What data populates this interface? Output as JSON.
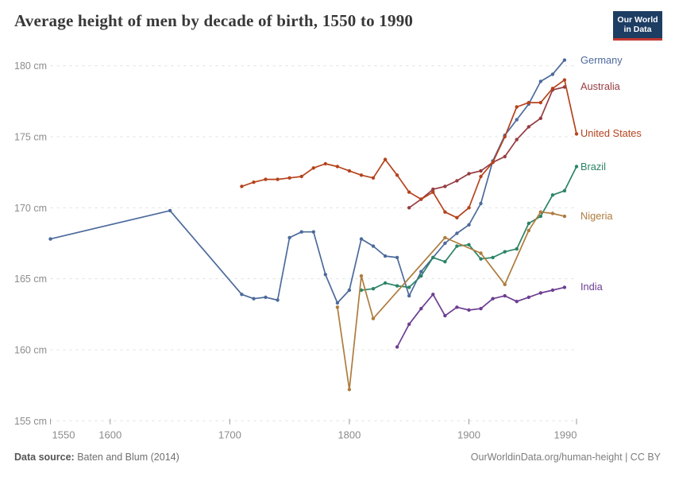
{
  "title": "Average height of men by decade of birth, 1550 to 1990",
  "logo": {
    "line1": "Our World",
    "line2": "in Data"
  },
  "footer": {
    "source_label": "Data source:",
    "source_value": "Baten and Blum (2014)",
    "credit": "OurWorldinData.org/human-height | CC BY"
  },
  "colors": {
    "logo_bg": "#1d3d63",
    "logo_bar": "#c23730",
    "grid": "#e0e0e0",
    "axis_text": "#8c8c8c",
    "tick_mark": "#999999",
    "title_text": "#383838"
  },
  "chart_data": {
    "type": "line",
    "title": "Average height of men by decade of birth, 1550 to 1990",
    "xlabel": "",
    "ylabel": "",
    "grid": true,
    "legend_position": "right-of-line-ends",
    "x_axis": {
      "range": [
        1550,
        1990
      ],
      "ticks": [
        1550,
        1600,
        1700,
        1800,
        1900,
        1990
      ]
    },
    "y_axis": {
      "range": [
        155,
        180
      ],
      "ticks": [
        155,
        160,
        165,
        170,
        175,
        180
      ],
      "tick_suffix": " cm"
    },
    "unit": "cm",
    "series": [
      {
        "name": "Germany",
        "color": "#4C6A9C",
        "points": [
          [
            1550,
            167.8
          ],
          [
            1650,
            169.8
          ],
          [
            1710,
            163.9
          ],
          [
            1720,
            163.6
          ],
          [
            1730,
            163.7
          ],
          [
            1740,
            163.5
          ],
          [
            1750,
            167.9
          ],
          [
            1760,
            168.3
          ],
          [
            1770,
            168.3
          ],
          [
            1780,
            165.3
          ],
          [
            1790,
            163.3
          ],
          [
            1800,
            164.2
          ],
          [
            1810,
            167.8
          ],
          [
            1820,
            167.3
          ],
          [
            1830,
            166.6
          ],
          [
            1840,
            166.5
          ],
          [
            1850,
            163.8
          ],
          [
            1860,
            165.5
          ],
          [
            1870,
            166.5
          ],
          [
            1880,
            167.5
          ],
          [
            1890,
            168.2
          ],
          [
            1900,
            168.8
          ],
          [
            1910,
            170.3
          ],
          [
            1920,
            173.3
          ],
          [
            1930,
            175.1
          ],
          [
            1940,
            176.2
          ],
          [
            1950,
            177.3
          ],
          [
            1960,
            178.9
          ],
          [
            1970,
            179.4
          ],
          [
            1980,
            180.4
          ]
        ]
      },
      {
        "name": "Australia",
        "color": "#963C41",
        "points": [
          [
            1850,
            170.0
          ],
          [
            1860,
            170.6
          ],
          [
            1870,
            171.3
          ],
          [
            1880,
            171.5
          ],
          [
            1890,
            171.9
          ],
          [
            1900,
            172.4
          ],
          [
            1910,
            172.6
          ],
          [
            1920,
            173.2
          ],
          [
            1930,
            173.6
          ],
          [
            1940,
            174.8
          ],
          [
            1950,
            175.7
          ],
          [
            1960,
            176.3
          ],
          [
            1970,
            178.3
          ],
          [
            1980,
            178.5
          ]
        ]
      },
      {
        "name": "United States",
        "color": "#B5431D",
        "points": [
          [
            1710,
            171.5
          ],
          [
            1720,
            171.8
          ],
          [
            1730,
            172.0
          ],
          [
            1740,
            172.0
          ],
          [
            1750,
            172.1
          ],
          [
            1760,
            172.2
          ],
          [
            1770,
            172.8
          ],
          [
            1780,
            173.1
          ],
          [
            1790,
            172.9
          ],
          [
            1800,
            172.6
          ],
          [
            1810,
            172.3
          ],
          [
            1820,
            172.1
          ],
          [
            1830,
            173.4
          ],
          [
            1840,
            172.3
          ],
          [
            1850,
            171.1
          ],
          [
            1860,
            170.6
          ],
          [
            1870,
            171.1
          ],
          [
            1880,
            169.7
          ],
          [
            1890,
            169.3
          ],
          [
            1900,
            170.0
          ],
          [
            1910,
            172.2
          ],
          [
            1920,
            173.2
          ],
          [
            1930,
            175.0
          ],
          [
            1940,
            177.1
          ],
          [
            1950,
            177.4
          ],
          [
            1960,
            177.4
          ],
          [
            1970,
            178.4
          ],
          [
            1980,
            179.0
          ],
          [
            1990,
            175.2
          ]
        ]
      },
      {
        "name": "Brazil",
        "color": "#2C8465",
        "points": [
          [
            1810,
            164.2
          ],
          [
            1820,
            164.3
          ],
          [
            1830,
            164.7
          ],
          [
            1840,
            164.5
          ],
          [
            1850,
            164.4
          ],
          [
            1860,
            165.2
          ],
          [
            1870,
            166.5
          ],
          [
            1880,
            166.2
          ],
          [
            1890,
            167.3
          ],
          [
            1900,
            167.4
          ],
          [
            1910,
            166.4
          ],
          [
            1920,
            166.5
          ],
          [
            1930,
            166.9
          ],
          [
            1940,
            167.1
          ],
          [
            1950,
            168.9
          ],
          [
            1960,
            169.4
          ],
          [
            1970,
            170.9
          ],
          [
            1980,
            171.2
          ],
          [
            1990,
            172.9
          ]
        ]
      },
      {
        "name": "Nigeria",
        "color": "#AE7C3C",
        "points": [
          [
            1790,
            163.0
          ],
          [
            1800,
            157.2
          ],
          [
            1810,
            165.2
          ],
          [
            1820,
            162.2
          ],
          [
            1880,
            167.9
          ],
          [
            1910,
            166.8
          ],
          [
            1930,
            164.6
          ],
          [
            1950,
            168.4
          ],
          [
            1960,
            169.7
          ],
          [
            1970,
            169.6
          ],
          [
            1980,
            169.4
          ]
        ]
      },
      {
        "name": "India",
        "color": "#6D3E91",
        "points": [
          [
            1840,
            160.2
          ],
          [
            1850,
            161.8
          ],
          [
            1860,
            162.9
          ],
          [
            1870,
            163.9
          ],
          [
            1880,
            162.4
          ],
          [
            1890,
            163.0
          ],
          [
            1900,
            162.8
          ],
          [
            1910,
            162.9
          ],
          [
            1920,
            163.6
          ],
          [
            1930,
            163.8
          ],
          [
            1940,
            163.4
          ],
          [
            1950,
            163.7
          ],
          [
            1960,
            164.0
          ],
          [
            1970,
            164.2
          ],
          [
            1980,
            164.4
          ]
        ]
      }
    ]
  }
}
